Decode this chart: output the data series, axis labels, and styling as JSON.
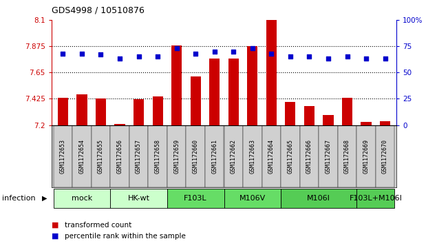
{
  "title": "GDS4998 / 10510876",
  "samples": [
    "GSM1172653",
    "GSM1172654",
    "GSM1172655",
    "GSM1172656",
    "GSM1172657",
    "GSM1172658",
    "GSM1172659",
    "GSM1172660",
    "GSM1172661",
    "GSM1172662",
    "GSM1172663",
    "GSM1172664",
    "GSM1172665",
    "GSM1172666",
    "GSM1172667",
    "GSM1172668",
    "GSM1172669",
    "GSM1172670"
  ],
  "bar_values": [
    7.435,
    7.465,
    7.43,
    7.21,
    7.42,
    7.445,
    7.88,
    7.615,
    7.77,
    7.77,
    7.875,
    8.1,
    7.395,
    7.36,
    7.285,
    7.435,
    7.225,
    7.235
  ],
  "dot_values": [
    68,
    68,
    67,
    63,
    65,
    65,
    73,
    68,
    70,
    70,
    73,
    68,
    65,
    65,
    63,
    65,
    63,
    63
  ],
  "ylim_left": [
    7.2,
    8.1
  ],
  "ylim_right": [
    0,
    100
  ],
  "yticks_left": [
    7.2,
    7.425,
    7.65,
    7.875,
    8.1
  ],
  "ytick_labels_left": [
    "7.2",
    "7.425",
    "7.65",
    "7.875",
    "8.1"
  ],
  "yticks_right": [
    0,
    25,
    50,
    75,
    100
  ],
  "ytick_labels_right": [
    "0",
    "25",
    "50",
    "75",
    "100%"
  ],
  "hlines": [
    7.425,
    7.65,
    7.875
  ],
  "bar_color": "#CC0000",
  "dot_color": "#0000CC",
  "bar_bottom": 7.2,
  "group_configs": [
    {
      "label": "mock",
      "indices": [
        0,
        1,
        2
      ],
      "color": "#ccffcc"
    },
    {
      "label": "HK-wt",
      "indices": [
        3,
        4,
        5
      ],
      "color": "#ccffcc"
    },
    {
      "label": "F103L",
      "indices": [
        6,
        7,
        8
      ],
      "color": "#66dd66"
    },
    {
      "label": "M106V",
      "indices": [
        9,
        10,
        11
      ],
      "color": "#66dd66"
    },
    {
      "label": "M106I",
      "indices": [
        12,
        13,
        14,
        15
      ],
      "color": "#55cc55"
    },
    {
      "label": "F103L+M106I",
      "indices": [
        16,
        17
      ],
      "color": "#55cc55"
    }
  ],
  "infection_label": "infection",
  "legend_bar_label": "transformed count",
  "legend_dot_label": "percentile rank within the sample",
  "sample_bg_color": "#d0d0d0",
  "title_fontsize": 9,
  "tick_fontsize": 7.5,
  "sample_fontsize": 6,
  "group_fontsize": 8
}
